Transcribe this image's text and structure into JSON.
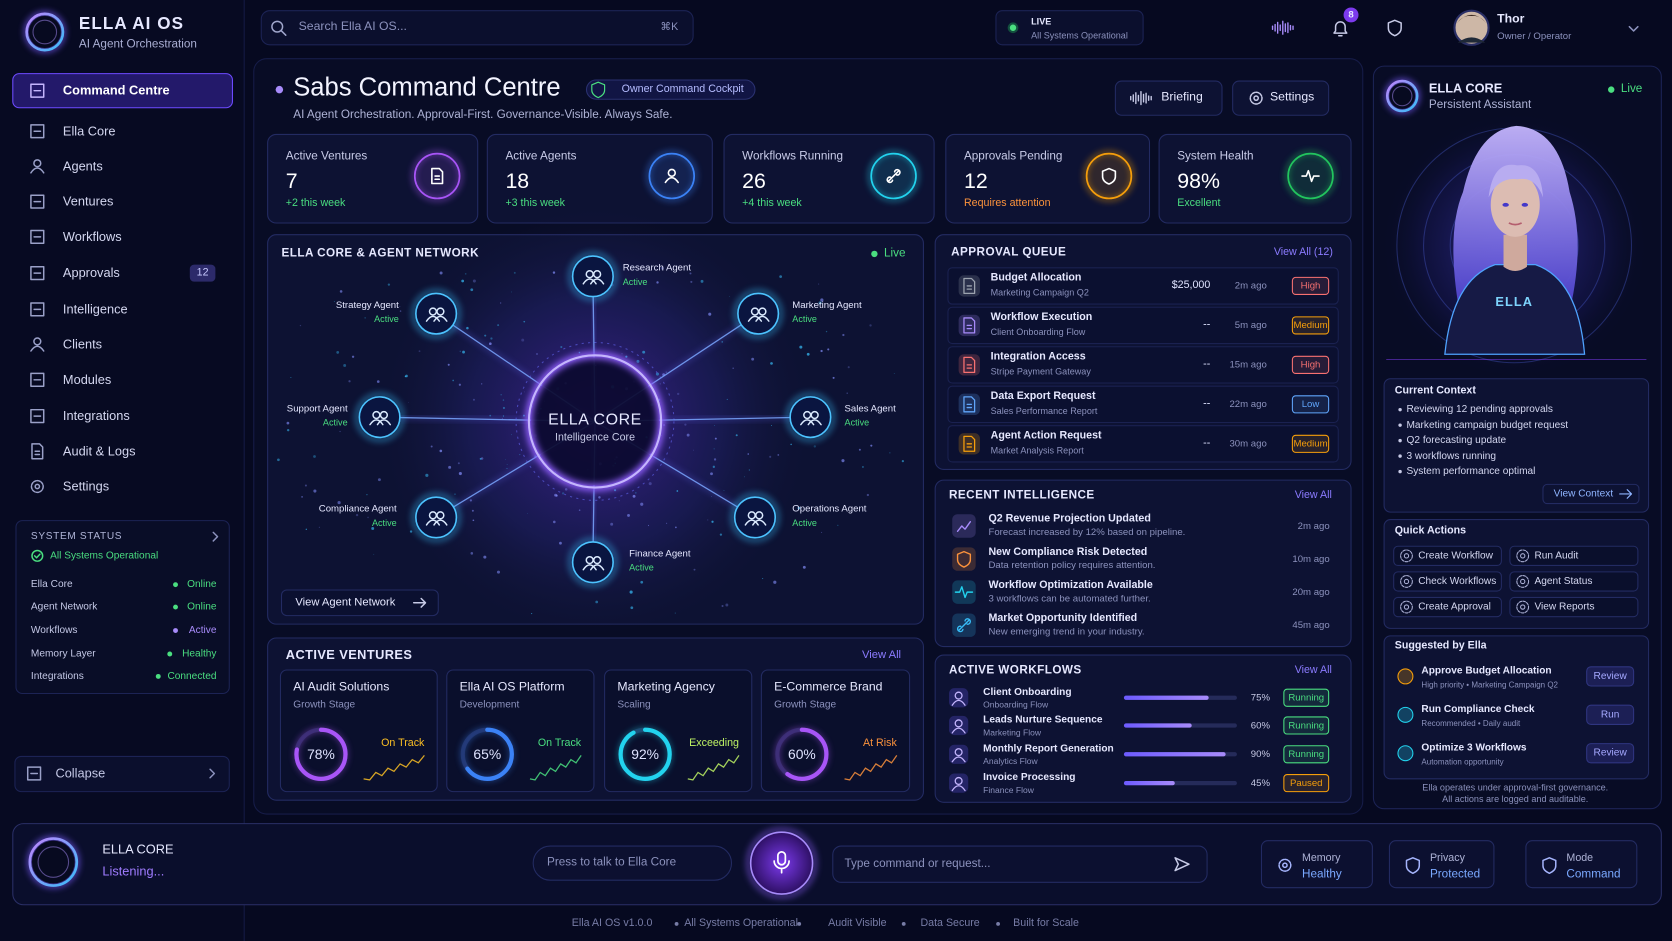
{
  "brand": {
    "name": "ELLA AI OS",
    "tagline": "AI Agent Orchestration"
  },
  "search": {
    "placeholder": "Search Ella AI OS...",
    "shortcut": "⌘K"
  },
  "status_pill": {
    "label": "LIVE",
    "text": "All Systems Operational"
  },
  "notifications": 8,
  "user": {
    "name": "Thor",
    "role": "Owner / Operator"
  },
  "nav": {
    "items": [
      {
        "label": "Command Centre"
      },
      {
        "label": "Ella Core"
      },
      {
        "label": "Agents"
      },
      {
        "label": "Ventures"
      },
      {
        "label": "Workflows"
      },
      {
        "label": "Approvals",
        "badge": 12
      },
      {
        "label": "Intelligence"
      },
      {
        "label": "Clients"
      },
      {
        "label": "Modules"
      },
      {
        "label": "Integrations"
      },
      {
        "label": "Audit & Logs"
      },
      {
        "label": "Settings"
      }
    ]
  },
  "system_status": {
    "title": "SYSTEM STATUS",
    "summary": "All Systems Operational",
    "rows": [
      {
        "label": "Ella Core",
        "value": "Online",
        "color": "#4ade80"
      },
      {
        "label": "Agent Network",
        "value": "Online",
        "color": "#4ade80"
      },
      {
        "label": "Workflows",
        "value": "Active",
        "color": "#a78bfa"
      },
      {
        "label": "Memory Layer",
        "value": "Healthy",
        "color": "#4ade80"
      },
      {
        "label": "Integrations",
        "value": "Connected",
        "color": "#4ade80"
      }
    ]
  },
  "collapse": "Collapse",
  "header": {
    "title": "Sabs Command Centre",
    "badge": "Owner Command Cockpit",
    "subtitle": "AI Agent Orchestration. Approval-First. Governance-Visible. Always Safe.",
    "buttons": [
      "Briefing",
      "Settings"
    ]
  },
  "stats": [
    {
      "label": "Active Ventures",
      "value": 7,
      "delta": "+2 this week",
      "delta_color": "#4ade80",
      "icon_color": "#a855f7"
    },
    {
      "label": "Active Agents",
      "value": 18,
      "delta": "+3 this week",
      "delta_color": "#4ade80",
      "icon_color": "#3b82f6"
    },
    {
      "label": "Workflows Running",
      "value": 26,
      "delta": "+4 this week",
      "delta_color": "#4ade80",
      "icon_color": "#22d3ee"
    },
    {
      "label": "Approvals Pending",
      "value": 12,
      "delta": "Requires attention",
      "delta_color": "#fb923c",
      "icon_color": "#f59e0b"
    },
    {
      "label": "System Health",
      "value": "98%",
      "delta": "Excellent",
      "delta_color": "#4ade80",
      "icon_color": "#22c55e"
    }
  ],
  "network": {
    "title": "ELLA CORE & AGENT NETWORK",
    "live": "Live",
    "core": "ELLA CORE",
    "core_sub": "Intelligence Core",
    "link": "View Agent Network",
    "agents": [
      {
        "name": "Research Agent",
        "status": "Active"
      },
      {
        "name": "Marketing Agent",
        "status": "Active"
      },
      {
        "name": "Sales Agent",
        "status": "Active"
      },
      {
        "name": "Operations Agent",
        "status": "Active"
      },
      {
        "name": "Finance Agent",
        "status": "Active"
      },
      {
        "name": "Compliance Agent",
        "status": "Active"
      },
      {
        "name": "Support Agent",
        "status": "Active"
      },
      {
        "name": "Strategy Agent",
        "status": "Active"
      }
    ]
  },
  "approval_queue": {
    "title": "APPROVAL QUEUE",
    "link": "View All (12)",
    "items": [
      {
        "title": "Budget Allocation",
        "sub": "Marketing Campaign Q2",
        "amount": "$25,000",
        "time": "2m ago",
        "priority": "High",
        "color": "#f87171",
        "icon_color": "#9ca3af"
      },
      {
        "title": "Workflow Execution",
        "sub": "Client Onboarding Flow",
        "amount": "--",
        "time": "5m ago",
        "priority": "Medium",
        "color": "#f59e0b",
        "icon_color": "#a78bfa"
      },
      {
        "title": "Integration Access",
        "sub": "Stripe Payment Gateway",
        "amount": "--",
        "time": "15m ago",
        "priority": "High",
        "color": "#f87171",
        "icon_color": "#f87171"
      },
      {
        "title": "Data Export Request",
        "sub": "Sales Performance Report",
        "amount": "--",
        "time": "22m ago",
        "priority": "Low",
        "color": "#60a5fa",
        "icon_color": "#60a5fa"
      },
      {
        "title": "Agent Action Request",
        "sub": "Market Analysis Report",
        "amount": "--",
        "time": "30m ago",
        "priority": "Medium",
        "color": "#f59e0b",
        "icon_color": "#f59e0b"
      }
    ]
  },
  "recent_intelligence": {
    "title": "RECENT INTELLIGENCE",
    "link": "View All",
    "items": [
      {
        "title": "Q2 Revenue Projection Updated",
        "sub": "Forecast increased by 12% based on pipeline.",
        "time": "2m ago",
        "icon_color": "#a78bfa"
      },
      {
        "title": "New Compliance Risk Detected",
        "sub": "Data retention policy requires attention.",
        "time": "10m ago",
        "icon_color": "#fb923c"
      },
      {
        "title": "Workflow Optimization Available",
        "sub": "3 workflows can be automated further.",
        "time": "20m ago",
        "icon_color": "#22d3ee"
      },
      {
        "title": "Market Opportunity Identified",
        "sub": "New emerging trend in your industry.",
        "time": "45m ago",
        "icon_color": "#38bdf8"
      }
    ]
  },
  "active_workflows": {
    "title": "ACTIVE WORKFLOWS",
    "link": "View All",
    "items": [
      {
        "name": "Client Onboarding",
        "flow": "Onboarding Flow",
        "progress": {
          "value": 75,
          "label": "75%"
        },
        "status": "Running",
        "status_color": "#4ade80"
      },
      {
        "name": "Leads Nurture Sequence",
        "flow": "Marketing Flow",
        "progress": {
          "value": 60,
          "label": "60%"
        },
        "status": "Running",
        "status_color": "#4ade80"
      },
      {
        "name": "Monthly Report Generation",
        "flow": "Analytics Flow",
        "progress": {
          "value": 90,
          "label": "90%"
        },
        "status": "Running",
        "status_color": "#4ade80"
      },
      {
        "name": "Invoice Processing",
        "flow": "Finance Flow",
        "progress": {
          "value": 45,
          "label": "45%"
        },
        "status": "Paused",
        "status_color": "#f59e0b"
      }
    ]
  },
  "active_ventures": {
    "title": "ACTIVE VENTURES",
    "link": "View All",
    "items": [
      {
        "name": "AI Audit Solutions",
        "stage": "Growth Stage",
        "progress": {
          "value": 78,
          "label": "78%"
        },
        "status": "On Track",
        "ring_color": "#a855f7",
        "status_color": "#fbbf24"
      },
      {
        "name": "Ella AI OS Platform",
        "stage": "Development",
        "progress": {
          "value": 65,
          "label": "65%"
        },
        "status": "On Track",
        "ring_color": "#3b82f6",
        "status_color": "#4ade80"
      },
      {
        "name": "Marketing Agency",
        "stage": "Scaling",
        "progress": {
          "value": 92,
          "label": "92%"
        },
        "status": "Exceeding",
        "ring_color": "#22d3ee",
        "status_color": "#bef264"
      },
      {
        "name": "E-Commerce Brand",
        "stage": "Growth Stage",
        "progress": {
          "value": 60,
          "label": "60%"
        },
        "status": "At Risk",
        "ring_color": "#a855f7",
        "status_color": "#fb923c"
      }
    ]
  },
  "ella_panel": {
    "title": "ELLA CORE",
    "live": "Live",
    "subtitle": "Persistent Assistant",
    "avatar_text": "ELLA",
    "context_title": "Current Context",
    "context": [
      "Reviewing 12 pending approvals",
      "Marketing campaign budget request",
      "Q2 forecasting update",
      "3 workflows running",
      "System performance optimal"
    ],
    "context_link": "View Context",
    "quick_title": "Quick Actions",
    "quick": [
      "Create Workflow",
      "Run Audit",
      "Check Workflows",
      "Agent Status",
      "Create Approval",
      "View Reports"
    ],
    "suggested_title": "Suggested by Ella",
    "suggested": [
      {
        "title": "Approve Budget Allocation",
        "sub": "High priority • Marketing Campaign Q2",
        "action": "Review",
        "color": "#f59e0b"
      },
      {
        "title": "Run Compliance Check",
        "sub": "Recommended • Daily audit",
        "action": "Run",
        "color": "#22d3ee"
      },
      {
        "title": "Optimize 3 Workflows",
        "sub": "Automation opportunity",
        "action": "Review",
        "color": "#22d3ee"
      }
    ],
    "footnote": [
      "Ella operates under approval-first governance.",
      "All actions are logged and auditable."
    ]
  },
  "voice_bar": {
    "title": "ELLA CORE",
    "state": "Listening...",
    "talk": "Press to talk to Ella Core",
    "input": "Type command or request...",
    "chips": [
      {
        "label": "Memory",
        "value": "Healthy"
      },
      {
        "label": "Privacy",
        "value": "Protected"
      },
      {
        "label": "Mode",
        "value": "Command"
      }
    ]
  },
  "footer": [
    "Ella AI OS v1.0.0",
    "All Systems Operational",
    "Audit Visible",
    "Data Secure",
    "Built for Scale"
  ]
}
